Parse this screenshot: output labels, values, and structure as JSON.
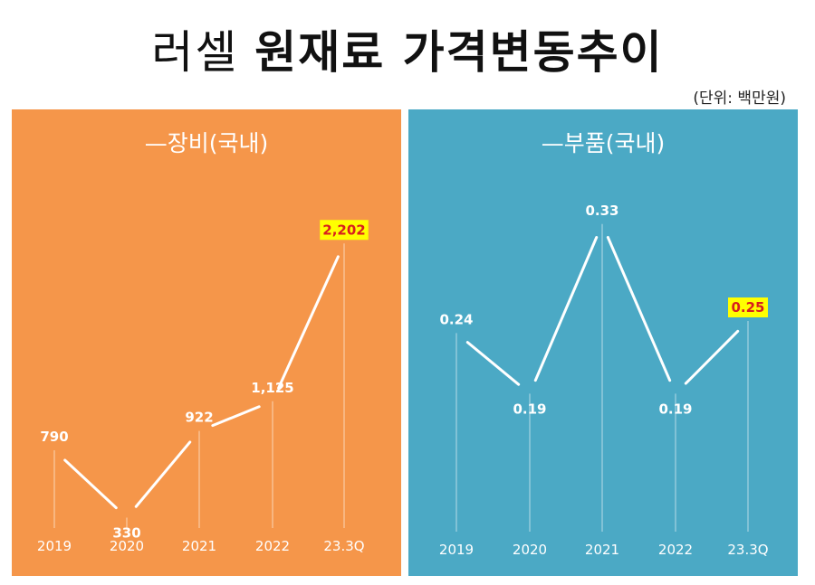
{
  "title": {
    "light": "러셀",
    "bold": "원재료 가격변동추이"
  },
  "unit_note": "(단위: 백만원)",
  "colors": {
    "left_panel": "#f5964a",
    "right_panel": "#4ba9c5",
    "highlight_box": "#ffff00",
    "highlight_text": "#d81e1e",
    "line": "#ffffff"
  },
  "chart_data": [
    {
      "type": "line",
      "title": "—장비(국내)",
      "categories": [
        "2019",
        "2020",
        "2021",
        "2022",
        "23.3Q"
      ],
      "values": [
        790,
        330,
        922,
        1125,
        2202
      ],
      "labels": [
        "790",
        "330",
        "922",
        "1,125",
        "2,202"
      ],
      "highlight_last": true,
      "ylim": [
        0,
        2500
      ],
      "grid": false
    },
    {
      "type": "line",
      "title": "—부품(국내)",
      "categories": [
        "2019",
        "2020",
        "2021",
        "2022",
        "23.3Q"
      ],
      "values": [
        0.24,
        0.19,
        0.33,
        0.19,
        0.25
      ],
      "labels": [
        "0.24",
        "0.19",
        "0.33",
        "0.19",
        "0.25"
      ],
      "highlight_last": true,
      "ylim": [
        0.05,
        0.35
      ],
      "grid": false
    }
  ]
}
